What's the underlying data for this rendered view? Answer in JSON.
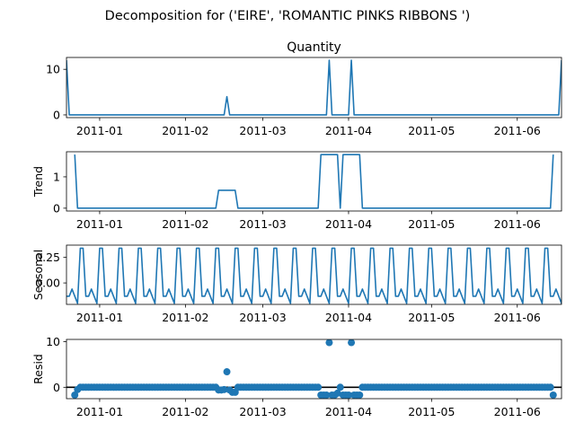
{
  "figure": {
    "suptitle": "Decomposition for ('EIRE', 'ROMANTIC PINKS RIBBONS ')"
  },
  "colors": {
    "series": "#1f77b4",
    "axis": "#000000",
    "zero_line": "#000000"
  },
  "chart_data": [
    {
      "type": "line",
      "title": "Quantity",
      "ylabel": "",
      "xlim": [
        "2010-12-20",
        "2011-06-17"
      ],
      "ylim": [
        -0.6,
        12.6
      ],
      "yticks": [
        0,
        10
      ],
      "xticks": [
        "2011-01-01",
        "2011-02-01",
        "2011-03-01",
        "2011-04-01",
        "2011-05-01",
        "2011-06-01"
      ],
      "xticklabels": [
        "2011-01",
        "2011-02",
        "2011-03",
        "2011-04",
        "2011-05",
        "2011-06"
      ],
      "points": [
        [
          "2010-12-20",
          12
        ],
        [
          "2010-12-21",
          0
        ],
        [
          "2011-02-15",
          0
        ],
        [
          "2011-02-16",
          4
        ],
        [
          "2011-02-17",
          0
        ],
        [
          "2011-03-24",
          0
        ],
        [
          "2011-03-25",
          12
        ],
        [
          "2011-03-26",
          0
        ],
        [
          "2011-04-01",
          0
        ],
        [
          "2011-04-02",
          12
        ],
        [
          "2011-04-03",
          0
        ],
        [
          "2011-06-16",
          0
        ],
        [
          "2011-06-17",
          12
        ]
      ]
    },
    {
      "type": "line",
      "title": "",
      "ylabel": "Trend",
      "xlim": [
        "2010-12-20",
        "2011-06-17"
      ],
      "ylim": [
        -0.09,
        1.8
      ],
      "yticks": [
        0,
        1
      ],
      "xticks": [
        "2011-01-01",
        "2011-02-01",
        "2011-03-01",
        "2011-04-01",
        "2011-05-01",
        "2011-06-01"
      ],
      "xticklabels": [
        "2011-01",
        "2011-02",
        "2011-03",
        "2011-04",
        "2011-05",
        "2011-06"
      ],
      "points": [
        [
          "2010-12-23",
          1.71
        ],
        [
          "2010-12-24",
          0
        ],
        [
          "2011-02-12",
          0
        ],
        [
          "2011-02-13",
          0.57
        ],
        [
          "2011-02-19",
          0.57
        ],
        [
          "2011-02-20",
          0
        ],
        [
          "2011-03-21",
          0
        ],
        [
          "2011-03-22",
          1.71
        ],
        [
          "2011-03-28",
          1.71
        ],
        [
          "2011-03-29",
          0
        ],
        [
          "2011-03-30",
          1.71
        ],
        [
          "2011-04-05",
          1.71
        ],
        [
          "2011-04-06",
          0
        ],
        [
          "2011-06-13",
          0
        ],
        [
          "2011-06-14",
          1.71
        ]
      ]
    },
    {
      "type": "line",
      "title": "",
      "ylabel": "Seasonal",
      "xlim": [
        "2010-12-20",
        "2011-06-17"
      ],
      "ylim": [
        -0.21,
        0.37
      ],
      "yticks": [
        0.0,
        0.25
      ],
      "yticklabels": [
        "0.00",
        "0.25"
      ],
      "xticks": [
        "2011-01-01",
        "2011-02-01",
        "2011-03-01",
        "2011-04-01",
        "2011-05-01",
        "2011-06-01"
      ],
      "xticklabels": [
        "2011-01",
        "2011-02",
        "2011-03",
        "2011-04",
        "2011-05",
        "2011-06"
      ],
      "start": "2010-12-20",
      "period_days": 7,
      "pattern": [
        -0.13,
        -0.13,
        -0.06,
        -0.13,
        -0.2,
        0.34,
        0.34
      ]
    },
    {
      "type": "scatter",
      "title": "",
      "ylabel": "Resid",
      "xlim": [
        "2010-12-20",
        "2011-06-17"
      ],
      "ylim": [
        -2.5,
        10.5
      ],
      "yticks": [
        0,
        10
      ],
      "zero_line": true,
      "xticks": [
        "2011-01-01",
        "2011-02-01",
        "2011-03-01",
        "2011-04-01",
        "2011-05-01",
        "2011-06-01"
      ],
      "xticklabels": [
        "2011-01",
        "2011-02",
        "2011-03",
        "2011-04",
        "2011-05",
        "2011-06"
      ],
      "start": "2010-12-23",
      "end": "2011-06-14",
      "baseline": 0,
      "outliers": [
        [
          "2010-12-23",
          -1.7
        ],
        [
          "2010-12-24",
          -0.5
        ],
        [
          "2011-02-13",
          -0.6
        ],
        [
          "2011-02-14",
          -0.6
        ],
        [
          "2011-02-15",
          -0.5
        ],
        [
          "2011-02-16",
          3.4
        ],
        [
          "2011-02-17",
          -0.6
        ],
        [
          "2011-02-18",
          -1.1
        ],
        [
          "2011-02-19",
          -1.1
        ],
        [
          "2011-03-22",
          -1.7
        ],
        [
          "2011-03-23",
          -1.7
        ],
        [
          "2011-03-24",
          -1.7
        ],
        [
          "2011-03-25",
          9.8
        ],
        [
          "2011-03-26",
          -1.7
        ],
        [
          "2011-03-27",
          -1.7
        ],
        [
          "2011-03-28",
          -1.3
        ],
        [
          "2011-03-29",
          0
        ],
        [
          "2011-03-30",
          -1.7
        ],
        [
          "2011-03-31",
          -1.7
        ],
        [
          "2011-04-01",
          -1.7
        ],
        [
          "2011-04-02",
          9.8
        ],
        [
          "2011-04-03",
          -1.7
        ],
        [
          "2011-04-04",
          -1.7
        ],
        [
          "2011-04-05",
          -1.7
        ],
        [
          "2011-06-14",
          -1.7
        ]
      ]
    }
  ]
}
